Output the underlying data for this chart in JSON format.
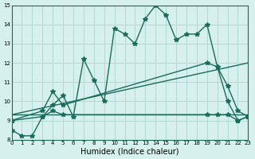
{
  "xlabel": "Humidex (Indice chaleur)",
  "ylabel": "",
  "xlim": [
    0,
    23
  ],
  "ylim": [
    8,
    15
  ],
  "yticks": [
    8,
    9,
    10,
    11,
    12,
    13,
    14,
    15
  ],
  "xticks": [
    0,
    1,
    2,
    3,
    4,
    5,
    6,
    7,
    8,
    9,
    10,
    11,
    12,
    13,
    14,
    15,
    16,
    17,
    18,
    19,
    20,
    21,
    22,
    23
  ],
  "bg_color": "#d6f0ee",
  "grid_color": "#b0d8d4",
  "line_color": "#1a6b5a",
  "series": {
    "main": {
      "x": [
        0,
        1,
        2,
        3,
        4,
        5,
        6,
        7,
        8,
        9,
        10,
        11,
        12,
        13,
        14,
        15,
        16,
        17,
        18,
        19,
        20,
        21,
        22,
        23
      ],
      "y": [
        8.5,
        8.2,
        8.2,
        9.2,
        9.8,
        10.3,
        9.2,
        12.2,
        11.1,
        10.0,
        13.8,
        13.5,
        13.0,
        14.3,
        15.0,
        14.5,
        13.2,
        13.5,
        13.5,
        14.0,
        11.8,
        10.0,
        9.0,
        9.2
      ]
    },
    "upper": {
      "x": [
        0,
        3,
        4,
        5,
        19,
        20,
        21,
        22,
        23
      ],
      "y": [
        9.0,
        9.5,
        10.5,
        9.8,
        12.0,
        11.8,
        10.8,
        9.5,
        9.2
      ]
    },
    "lower": {
      "x": [
        0,
        3,
        4,
        5,
        19,
        20,
        21,
        22,
        23
      ],
      "y": [
        9.0,
        9.2,
        9.5,
        9.3,
        9.3,
        9.3,
        9.3,
        9.0,
        9.2
      ]
    },
    "mid_upper": {
      "x": [
        0,
        23
      ],
      "y": [
        9.3,
        12.0
      ]
    },
    "mid_lower": {
      "x": [
        0,
        23
      ],
      "y": [
        9.3,
        9.3
      ]
    }
  }
}
